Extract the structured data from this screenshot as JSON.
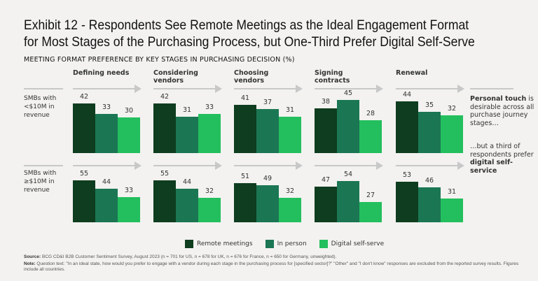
{
  "title_line1": "Exhibit 12 - Respondents See Remote Meetings as the Ideal Engagement Format",
  "title_line2": "for Most Stages of the Purchasing Process, but One-Third Prefer Digital Self-Serve",
  "subtitle": "MEETING FORMAT PREFERENCE BY KEY STAGES IN PURCHASING DECISION (%)",
  "colors": {
    "remote": "#0e3d1f",
    "in_person": "#1b7654",
    "digital": "#23bf5e",
    "arrow": "#c8c8c8"
  },
  "side_note": {
    "p1_bold": "Personal touch",
    "p1_rest": "is desirable across all purchase journey stages…",
    "p2_rest": "…but a third of respondents prefer",
    "p2_bold": "digital self-service"
  },
  "footer": {
    "source_label": "Source:",
    "source": "BCG CD&I B2B Customer Sentiment Survey, August 2023 (n = 701 for US, n = 678 for UK, n = 676 for France, n = 650 for Germany, unweighted).",
    "note_label": "Note:",
    "note": "Question text: \"In an ideal state, how would you prefer to engage with a vendor during each stage in the purchasing process for [specified sector]?\" \"Other\" and \"I don't know\" responses are excluded from the reported survey results. Figures include all countries."
  },
  "chart_data": {
    "type": "bar",
    "categories": [
      "Defining needs",
      "Considering vendors",
      "Choosing vendors",
      "Signing contracts",
      "Renewal"
    ],
    "legend": [
      "Remote meetings",
      "In person",
      "Digital self-serve"
    ],
    "legend_placement": "bottom",
    "rows": [
      {
        "label": "SMBs with <$10M in revenue",
        "series": [
          {
            "name": "Remote meetings",
            "values": [
              42,
              42,
              41,
              38,
              44
            ]
          },
          {
            "name": "In person",
            "values": [
              33,
              31,
              37,
              45,
              35
            ]
          },
          {
            "name": "Digital self-serve",
            "values": [
              30,
              33,
              31,
              28,
              32
            ]
          }
        ]
      },
      {
        "label": "SMBs with ≥$10M in revenue",
        "series": [
          {
            "name": "Remote meetings",
            "values": [
              55,
              55,
              51,
              47,
              53
            ]
          },
          {
            "name": "In person",
            "values": [
              44,
              44,
              49,
              54,
              46
            ]
          },
          {
            "name": "Digital self-serve",
            "values": [
              33,
              32,
              32,
              27,
              31
            ]
          }
        ]
      }
    ]
  }
}
